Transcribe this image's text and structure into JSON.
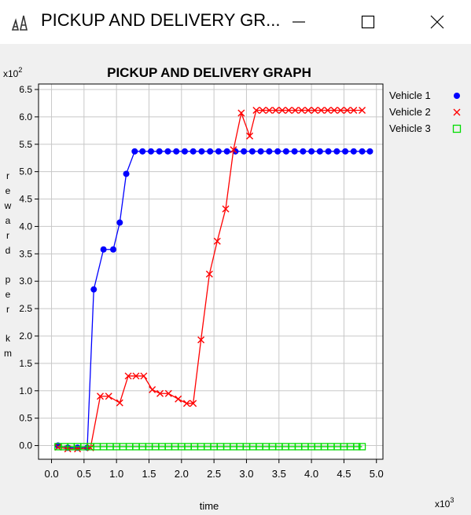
{
  "window": {
    "title": "PICKUP AND DELIVERY GR...",
    "icon": "app-graph-icon",
    "controls": [
      "minimize-icon",
      "maximize-icon",
      "close-icon"
    ]
  },
  "chart_data": {
    "type": "line",
    "title": "PICKUP AND DELIVERY GRAPH",
    "xlabel": "time",
    "ylabel": "reward per km",
    "x_multiplier": "x10^3",
    "y_multiplier": "x10^2",
    "x_multiplier_base": "x10",
    "x_multiplier_exp": "3",
    "y_multiplier_base": "x10",
    "y_multiplier_exp": "2",
    "xlim": [
      -0.2,
      5.1
    ],
    "ylim": [
      -0.25,
      6.6
    ],
    "x_ticks": [
      0.0,
      0.5,
      1.0,
      1.5,
      2.0,
      2.5,
      3.0,
      3.5,
      4.0,
      4.5,
      5.0
    ],
    "y_ticks": [
      0.0,
      0.5,
      1.0,
      1.5,
      2.0,
      2.5,
      3.0,
      3.5,
      4.0,
      4.5,
      5.0,
      5.5,
      6.0,
      6.5
    ],
    "x_tick_labels": [
      "0.0",
      "0.5",
      "1.0",
      "1.5",
      "2.0",
      "2.5",
      "3.0",
      "3.5",
      "4.0",
      "4.5",
      "5.0"
    ],
    "y_tick_labels": [
      "0.0",
      "0.5",
      "1.0",
      "1.5",
      "2.0",
      "2.5",
      "3.0",
      "3.5",
      "4.0",
      "4.5",
      "5.0",
      "5.5",
      "6.0",
      "6.5"
    ],
    "grid": true,
    "legend_position": "top-right",
    "series": [
      {
        "name": "Vehicle 1",
        "color": "#0000ff",
        "marker": "circle",
        "x": [
          0.1,
          0.25,
          0.4,
          0.55,
          0.65,
          0.8,
          0.95,
          1.05,
          1.15,
          1.28,
          1.4,
          1.53,
          1.66,
          1.79,
          1.92,
          2.05,
          2.18,
          2.31,
          2.44,
          2.57,
          2.7,
          2.83,
          2.96,
          3.09,
          3.22,
          3.35,
          3.48,
          3.61,
          3.74,
          3.87,
          4.0,
          4.13,
          4.26,
          4.39,
          4.52,
          4.65,
          4.78,
          4.9
        ],
        "y": [
          0.0,
          -0.04,
          -0.04,
          -0.04,
          2.85,
          3.58,
          3.58,
          4.07,
          4.96,
          5.37,
          5.37,
          5.37,
          5.37,
          5.37,
          5.37,
          5.37,
          5.37,
          5.37,
          5.37,
          5.37,
          5.37,
          5.37,
          5.37,
          5.37,
          5.37,
          5.37,
          5.37,
          5.37,
          5.37,
          5.37,
          5.37,
          5.37,
          5.37,
          5.37,
          5.37,
          5.37,
          5.37,
          5.37
        ]
      },
      {
        "name": "Vehicle 2",
        "color": "#ff0000",
        "marker": "x",
        "x": [
          0.1,
          0.25,
          0.4,
          0.6,
          0.75,
          0.88,
          1.05,
          1.18,
          1.3,
          1.42,
          1.55,
          1.67,
          1.8,
          1.95,
          2.08,
          2.18,
          2.3,
          2.43,
          2.55,
          2.68,
          2.8,
          2.92,
          3.05,
          3.15,
          3.25,
          3.35,
          3.45,
          3.55,
          3.65,
          3.75,
          3.85,
          3.95,
          4.05,
          4.15,
          4.25,
          4.35,
          4.45,
          4.55,
          4.65,
          4.78
        ],
        "y": [
          -0.03,
          -0.06,
          -0.06,
          -0.04,
          0.9,
          0.9,
          0.78,
          1.27,
          1.27,
          1.27,
          1.02,
          0.95,
          0.95,
          0.85,
          0.77,
          0.77,
          1.93,
          3.13,
          3.73,
          4.32,
          5.4,
          6.07,
          5.65,
          6.12,
          6.12,
          6.12,
          6.12,
          6.12,
          6.12,
          6.12,
          6.12,
          6.12,
          6.12,
          6.12,
          6.12,
          6.12,
          6.12,
          6.12,
          6.12,
          6.12
        ]
      },
      {
        "name": "Vehicle 3",
        "color": "#00dd00",
        "marker": "square",
        "x": [
          0.1,
          0.2,
          0.3,
          0.4,
          0.5,
          0.6,
          0.7,
          0.8,
          0.9,
          1.0,
          1.1,
          1.2,
          1.3,
          1.4,
          1.5,
          1.6,
          1.7,
          1.8,
          1.9,
          2.0,
          2.1,
          2.2,
          2.3,
          2.4,
          2.5,
          2.6,
          2.7,
          2.8,
          2.9,
          3.0,
          3.1,
          3.2,
          3.3,
          3.4,
          3.5,
          3.6,
          3.7,
          3.8,
          3.9,
          4.0,
          4.1,
          4.2,
          4.3,
          4.4,
          4.5,
          4.6,
          4.7,
          4.78
        ],
        "y": [
          -0.02,
          -0.02,
          -0.02,
          -0.02,
          -0.02,
          -0.02,
          -0.02,
          -0.02,
          -0.02,
          -0.02,
          -0.02,
          -0.02,
          -0.02,
          -0.02,
          -0.02,
          -0.02,
          -0.02,
          -0.02,
          -0.02,
          -0.02,
          -0.02,
          -0.02,
          -0.02,
          -0.02,
          -0.02,
          -0.02,
          -0.02,
          -0.02,
          -0.02,
          -0.02,
          -0.02,
          -0.02,
          -0.02,
          -0.02,
          -0.02,
          -0.02,
          -0.02,
          -0.02,
          -0.02,
          -0.02,
          -0.02,
          -0.02,
          -0.02,
          -0.02,
          -0.02,
          -0.02,
          -0.02,
          -0.02
        ]
      }
    ]
  }
}
